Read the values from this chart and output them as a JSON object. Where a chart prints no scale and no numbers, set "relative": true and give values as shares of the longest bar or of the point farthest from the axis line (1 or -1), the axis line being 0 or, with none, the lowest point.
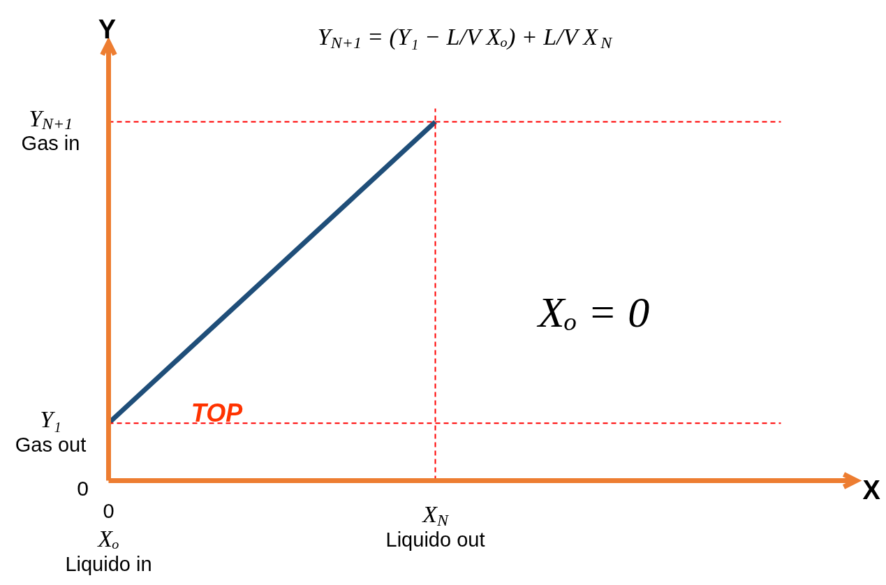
{
  "chart_data": {
    "type": "line",
    "relative": true,
    "title": "Y$_{N+1}$ = (Y₁ − L/V Xₒ) + L/V X$_{N}$",
    "xlabel": "X",
    "ylabel": "Y",
    "categories": [
      "0\nXₒ\nLiquido in",
      "X$_{N}$\nLiquido out"
    ],
    "series": [
      {
        "color": "#1f4e79",
        "values": [
          0.16,
          1.0
        ]
      }
    ],
    "ref_lines": [
      {
        "axis": "y",
        "value": 1.0,
        "label": "Y$_{N+1}$\nGas in",
        "color": "#ff0000",
        "line_style": "dashed"
      },
      {
        "axis": "y",
        "value": 0.16,
        "label": "Y₁\nGas out",
        "color": "#ff0000",
        "line_style": "dashed"
      },
      {
        "axis": "x",
        "value": "X$_{N}$\nLiquido out",
        "color": "#ff0000",
        "line_style": "dashed"
      }
    ],
    "annotations": [
      "TOP",
      "Xₒ = 0",
      "0"
    ]
  }
}
